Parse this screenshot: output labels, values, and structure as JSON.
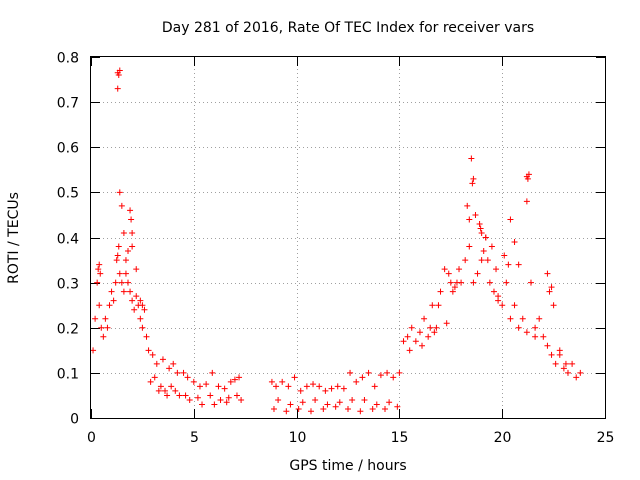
{
  "chart_data": {
    "type": "scatter",
    "title": "Day 281 of 2016, Rate Of TEC Index for receiver vars",
    "xlabel": "GPS time / hours",
    "ylabel": "ROTI / TECUs",
    "xlim": [
      0,
      25
    ],
    "ylim": [
      0,
      0.8
    ],
    "x_ticks": [
      0,
      5,
      10,
      15,
      20,
      25
    ],
    "x_tick_labels": [
      "0",
      "5",
      "10",
      "15",
      "20",
      "25"
    ],
    "y_ticks": [
      0,
      0.1,
      0.2,
      0.3,
      0.4,
      0.5,
      0.6,
      0.7,
      0.8
    ],
    "y_tick_labels": [
      "0",
      "0.1",
      "0.2",
      "0.3",
      "0.4",
      "0.5",
      "0.6",
      "0.7",
      "0.8"
    ],
    "grid": true,
    "marker": "+",
    "color": "#ff0000",
    "series": [
      {
        "name": "vars",
        "x": [
          0.1,
          0.2,
          0.3,
          0.4,
          0.5,
          0.6,
          0.7,
          0.8,
          0.9,
          1.0,
          1.1,
          1.2,
          1.25,
          1.3,
          1.35,
          1.4,
          1.5,
          1.6,
          1.7,
          1.8,
          1.9,
          2.0,
          2.1,
          2.2,
          2.3,
          2.4,
          2.5,
          2.6,
          2.7,
          0.35,
          0.4,
          0.45,
          1.3,
          1.35,
          1.4,
          1.3,
          1.4,
          1.5,
          1.6,
          1.9,
          1.95,
          2.0,
          1.7,
          1.8,
          2.0,
          2.2,
          2.4,
          2.5,
          2.8,
          3.0,
          3.2,
          3.5,
          3.8,
          4.0,
          4.2,
          4.5,
          4.7,
          5.0,
          5.3,
          5.6,
          5.9,
          6.2,
          6.5,
          6.8,
          7.0,
          7.2,
          3.3,
          3.7,
          4.1,
          4.6,
          5.2,
          5.8,
          6.3,
          6.7,
          7.1,
          2.9,
          3.1,
          3.4,
          3.6,
          3.9,
          4.3,
          4.8,
          5.4,
          6.0,
          6.6,
          7.3,
          8.8,
          9.0,
          9.3,
          9.6,
          9.9,
          10.2,
          10.5,
          10.8,
          11.1,
          11.4,
          11.7,
          12.0,
          12.3,
          12.6,
          12.9,
          13.2,
          13.5,
          13.8,
          14.1,
          14.4,
          14.7,
          9.1,
          9.7,
          10.3,
          10.9,
          11.5,
          12.1,
          12.7,
          13.3,
          13.9,
          14.5,
          8.9,
          9.5,
          10.1,
          10.7,
          11.3,
          11.9,
          12.5,
          13.1,
          13.7,
          14.3,
          14.9,
          15.0,
          15.2,
          15.4,
          15.6,
          15.8,
          16.0,
          16.2,
          16.4,
          16.6,
          16.8,
          17.0,
          17.2,
          17.4,
          17.6,
          17.8,
          18.0,
          18.2,
          18.4,
          18.6,
          18.8,
          19.0,
          19.2,
          19.4,
          19.6,
          19.8,
          20.0,
          20.2,
          20.4,
          20.6,
          20.8,
          21.0,
          21.2,
          21.4,
          21.6,
          21.8,
          22.0,
          22.2,
          22.4,
          22.6,
          22.8,
          23.0,
          23.2,
          23.4,
          23.6,
          23.8,
          18.5,
          18.55,
          18.6,
          18.9,
          18.95,
          19.0,
          19.1,
          19.2,
          19.3,
          19.5,
          19.7,
          20.4,
          20.6,
          20.8,
          21.2,
          21.25,
          21.3,
          21.2,
          22.2,
          22.3,
          22.4,
          22.5,
          18.3,
          18.4,
          18.7,
          17.5,
          17.7,
          17.9,
          16.5,
          16.9,
          17.3,
          20.1,
          20.3,
          22.8,
          23.1,
          19.8,
          21.6,
          15.5,
          16.1,
          16.7
        ],
        "y": [
          0.15,
          0.22,
          0.3,
          0.25,
          0.2,
          0.18,
          0.22,
          0.2,
          0.25,
          0.28,
          0.26,
          0.3,
          0.35,
          0.36,
          0.38,
          0.32,
          0.3,
          0.28,
          0.32,
          0.3,
          0.28,
          0.26,
          0.24,
          0.27,
          0.25,
          0.22,
          0.2,
          0.24,
          0.18,
          0.33,
          0.34,
          0.32,
          0.765,
          0.76,
          0.77,
          0.73,
          0.5,
          0.47,
          0.41,
          0.46,
          0.44,
          0.41,
          0.35,
          0.37,
          0.38,
          0.33,
          0.26,
          0.25,
          0.15,
          0.14,
          0.12,
          0.13,
          0.11,
          0.12,
          0.1,
          0.1,
          0.09,
          0.08,
          0.07,
          0.075,
          0.1,
          0.07,
          0.065,
          0.08,
          0.085,
          0.09,
          0.06,
          0.05,
          0.06,
          0.05,
          0.045,
          0.05,
          0.04,
          0.045,
          0.05,
          0.08,
          0.09,
          0.07,
          0.06,
          0.07,
          0.05,
          0.04,
          0.03,
          0.03,
          0.035,
          0.04,
          0.08,
          0.07,
          0.08,
          0.07,
          0.09,
          0.06,
          0.07,
          0.075,
          0.07,
          0.06,
          0.065,
          0.07,
          0.065,
          0.1,
          0.08,
          0.09,
          0.1,
          0.07,
          0.095,
          0.1,
          0.09,
          0.04,
          0.03,
          0.035,
          0.04,
          0.03,
          0.035,
          0.04,
          0.04,
          0.03,
          0.035,
          0.02,
          0.015,
          0.02,
          0.015,
          0.02,
          0.025,
          0.02,
          0.015,
          0.02,
          0.02,
          0.025,
          0.1,
          0.17,
          0.18,
          0.2,
          0.17,
          0.19,
          0.22,
          0.18,
          0.25,
          0.2,
          0.28,
          0.33,
          0.32,
          0.28,
          0.3,
          0.3,
          0.35,
          0.38,
          0.3,
          0.32,
          0.35,
          0.4,
          0.3,
          0.28,
          0.26,
          0.25,
          0.3,
          0.22,
          0.25,
          0.2,
          0.22,
          0.19,
          0.3,
          0.2,
          0.22,
          0.18,
          0.16,
          0.14,
          0.12,
          0.14,
          0.11,
          0.1,
          0.12,
          0.09,
          0.1,
          0.575,
          0.52,
          0.53,
          0.43,
          0.42,
          0.41,
          0.37,
          0.4,
          0.35,
          0.38,
          0.33,
          0.44,
          0.39,
          0.34,
          0.535,
          0.53,
          0.54,
          0.48,
          0.32,
          0.28,
          0.29,
          0.25,
          0.47,
          0.44,
          0.45,
          0.3,
          0.29,
          0.33,
          0.2,
          0.25,
          0.21,
          0.36,
          0.34,
          0.15,
          0.12,
          0.27,
          0.18,
          0.15,
          0.16,
          0.19
        ]
      }
    ]
  }
}
